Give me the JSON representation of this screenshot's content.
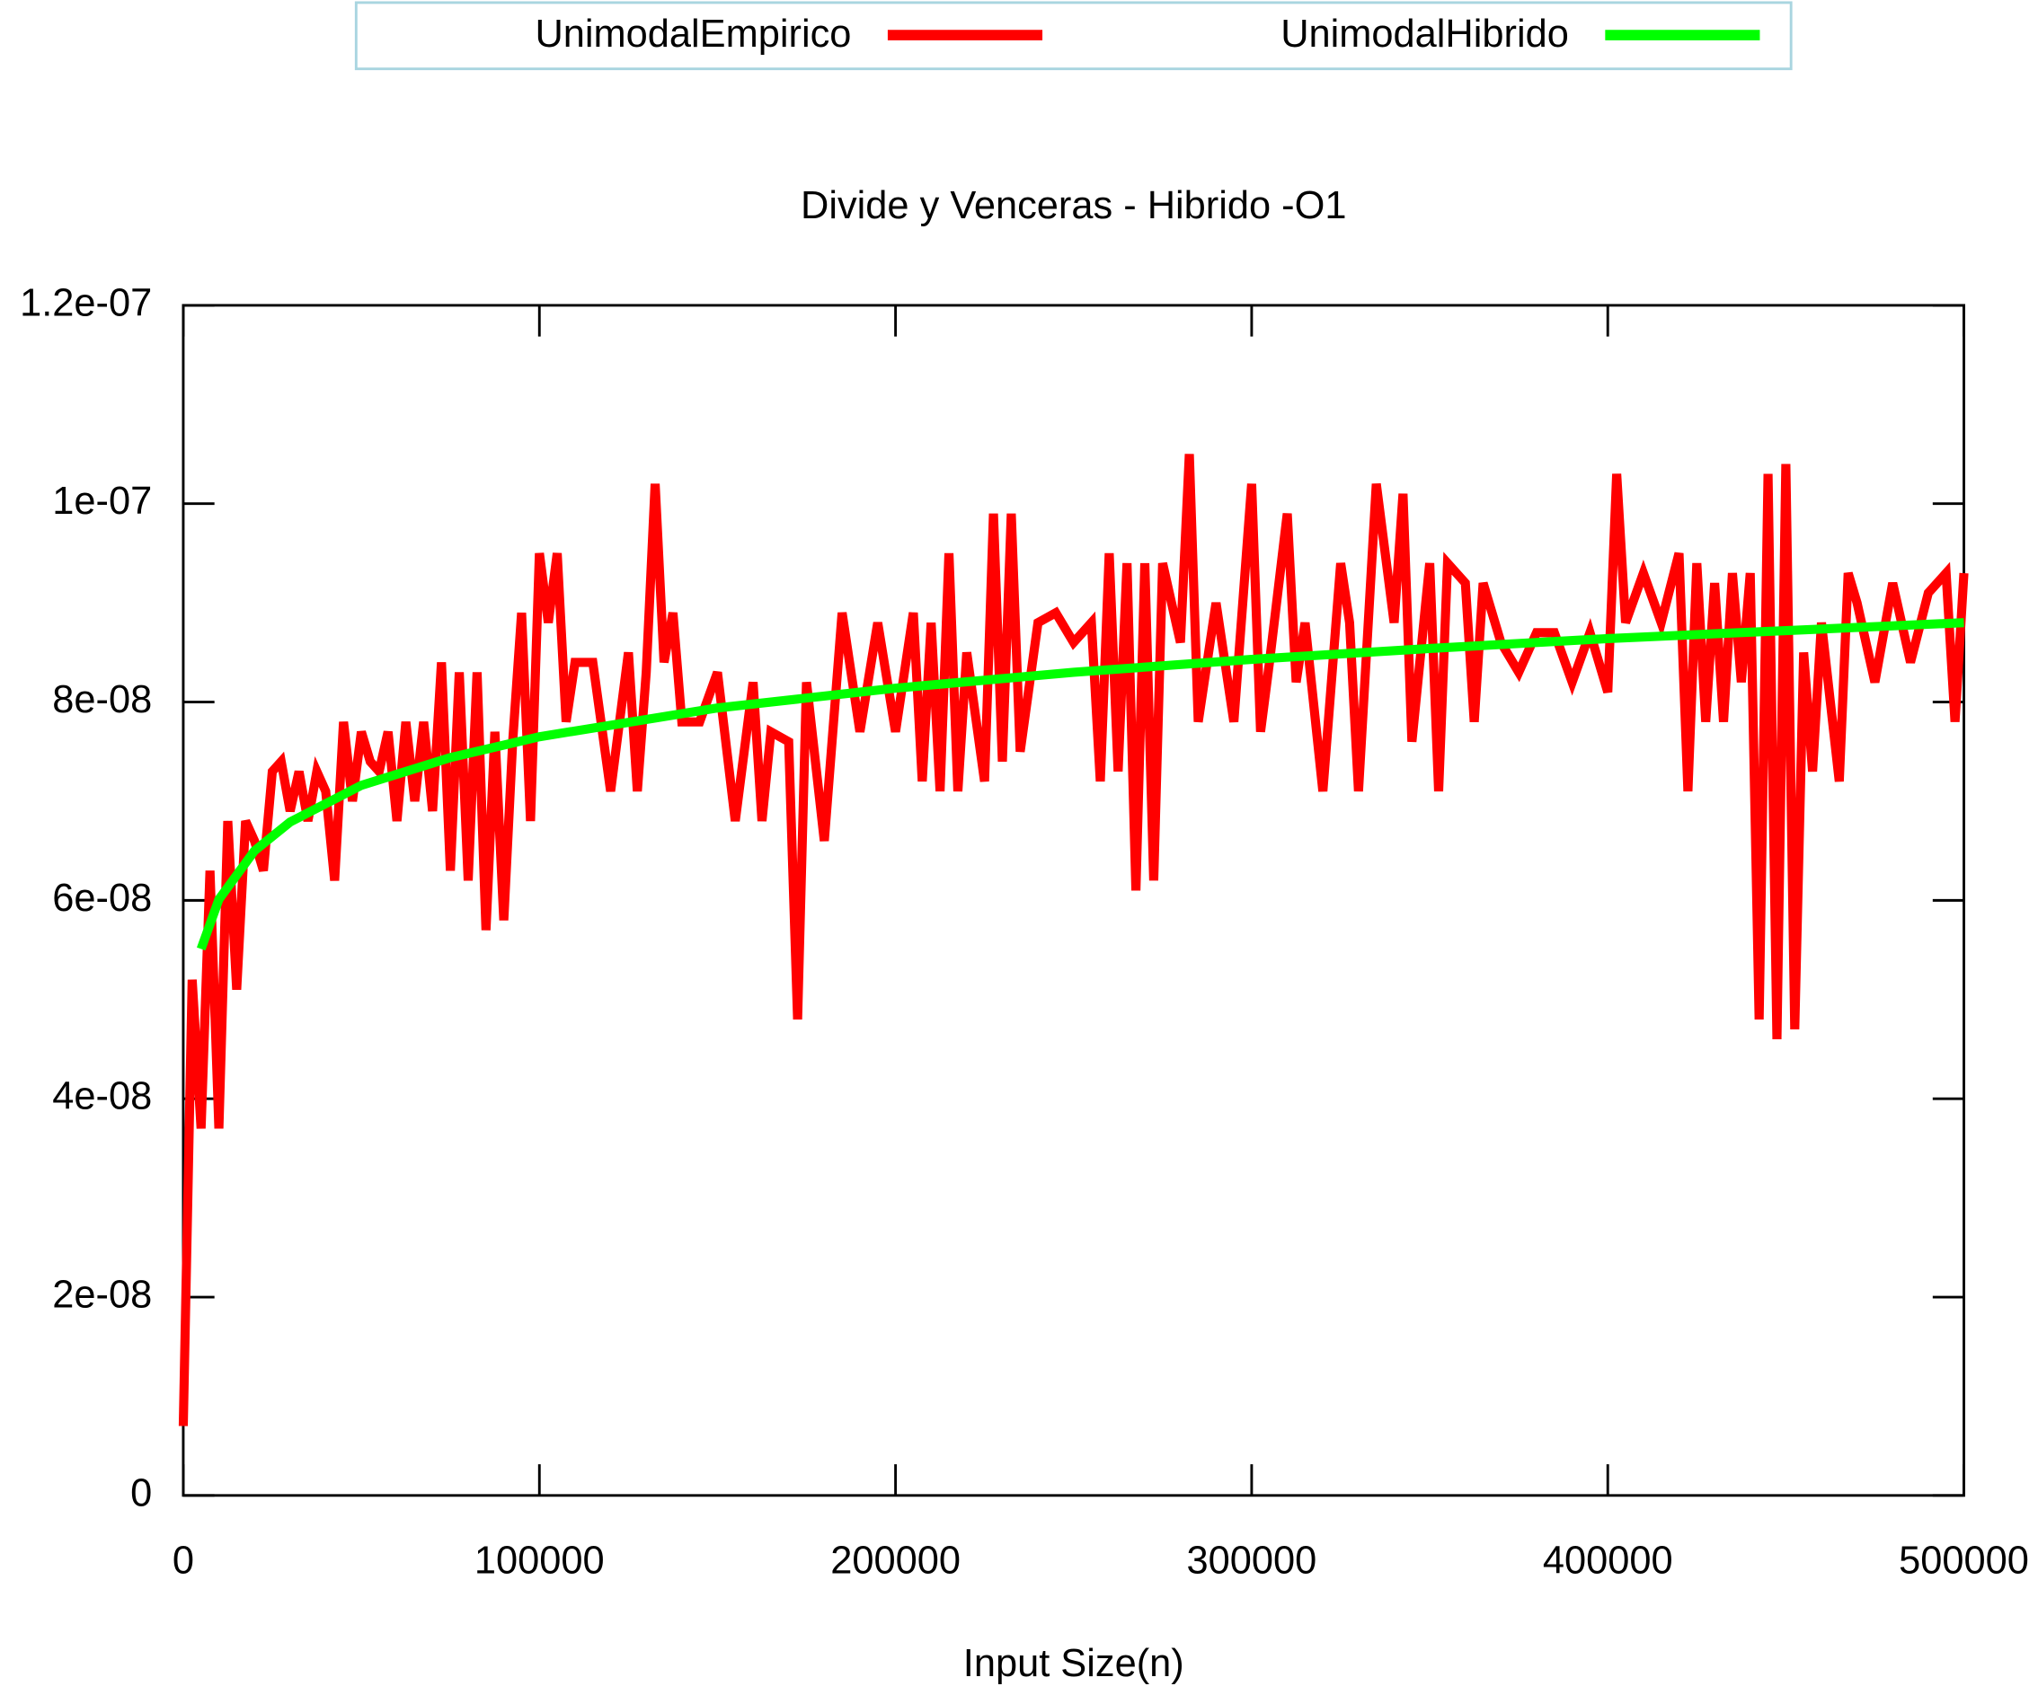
{
  "chart_data": {
    "type": "line",
    "title": "Divide y Venceras - Hibrido -O1",
    "xlabel": "Input Size(n)",
    "legend": "top",
    "grid": false,
    "xlim": [
      0,
      500000
    ],
    "xticks": [
      0,
      100000,
      200000,
      300000,
      400000,
      500000
    ],
    "ylim": [
      0,
      1.2e-07
    ],
    "yticks": [
      0,
      {
        "value": 2e-08,
        "label": "2e-08"
      },
      {
        "value": 4e-08,
        "label": "4e-08"
      },
      {
        "value": 6e-08,
        "label": "6e-08"
      },
      {
        "value": 8e-08,
        "label": "8e-08"
      },
      {
        "value": 1e-07,
        "label": "1e-07"
      },
      {
        "value": 1.2e-07,
        "label": "1.2e-07"
      }
    ],
    "series": [
      {
        "name": "UnimodalEmpirico",
        "color": "#ff0000",
        "x": [
          0,
          2500,
          5000,
          7500,
          10000,
          12500,
          15000,
          17500,
          20000,
          22500,
          25000,
          27500,
          30000,
          32500,
          35000,
          37500,
          40000,
          42500,
          45000,
          47500,
          50000,
          52500,
          55000,
          57500,
          60000,
          62500,
          65000,
          67500,
          70000,
          72500,
          75000,
          77500,
          80000,
          82500,
          85000,
          87500,
          90000,
          92500,
          95000,
          97500,
          100000,
          102500,
          105000,
          107500,
          110000,
          115000,
          120000,
          125000,
          127500,
          130000,
          132500,
          135000,
          137500,
          140000,
          145000,
          150000,
          155000,
          160000,
          162500,
          165000,
          170000,
          172500,
          175000,
          180000,
          185000,
          190000,
          195000,
          200000,
          205000,
          207500,
          210000,
          212500,
          215000,
          217500,
          220000,
          225000,
          227500,
          230000,
          232500,
          235000,
          240000,
          245000,
          250000,
          255000,
          257500,
          260000,
          262500,
          265000,
          267500,
          270000,
          272500,
          275000,
          280000,
          282500,
          285000,
          290000,
          295000,
          300000,
          302500,
          305000,
          310000,
          312500,
          315000,
          320000,
          325000,
          327500,
          330000,
          335000,
          340000,
          342500,
          345000,
          350000,
          352500,
          355000,
          360000,
          362500,
          365000,
          370000,
          375000,
          380000,
          385000,
          390000,
          395000,
          400000,
          402500,
          405000,
          410000,
          415000,
          420000,
          422500,
          425000,
          427500,
          430000,
          432500,
          435000,
          437500,
          440000,
          442500,
          445000,
          447500,
          450000,
          452500,
          455000,
          457500,
          460000,
          465000,
          467500,
          470000,
          475000,
          480000,
          485000,
          490000,
          495000,
          497500,
          500000
        ],
        "values": [
          7e-09,
          5.2e-08,
          3.7e-08,
          6.3e-08,
          3.7e-08,
          6.8e-08,
          5.1e-08,
          6.8e-08,
          6.6e-08,
          6.3e-08,
          7.3e-08,
          7.4e-08,
          6.9e-08,
          7.3e-08,
          6.8e-08,
          7.3e-08,
          7.1e-08,
          6.2e-08,
          7.8e-08,
          7e-08,
          7.7e-08,
          7.4e-08,
          7.3e-08,
          7.7e-08,
          6.8e-08,
          7.8e-08,
          7e-08,
          7.8e-08,
          6.9e-08,
          8.4e-08,
          6.3e-08,
          8.3e-08,
          6.2e-08,
          8.3e-08,
          5.7e-08,
          7.7e-08,
          5.8e-08,
          7.6e-08,
          8.9e-08,
          6.8e-08,
          9.5e-08,
          8.8e-08,
          9.5e-08,
          7.8e-08,
          8.4e-08,
          8.4e-08,
          7.1e-08,
          8.5e-08,
          7.1e-08,
          8.3e-08,
          1.02e-07,
          8.4e-08,
          8.9e-08,
          7.8e-08,
          7.8e-08,
          8.3e-08,
          6.8e-08,
          8.2e-08,
          6.8e-08,
          7.7e-08,
          7.6e-08,
          4.8e-08,
          8.2e-08,
          6.6e-08,
          8.9e-08,
          7.7e-08,
          8.8e-08,
          7.7e-08,
          8.9e-08,
          7.2e-08,
          8.8e-08,
          7.1e-08,
          9.5e-08,
          7.1e-08,
          8.5e-08,
          7.2e-08,
          9.9e-08,
          7.4e-08,
          9.9e-08,
          7.5e-08,
          8.8e-08,
          8.9e-08,
          8.6e-08,
          8.8e-08,
          7.2e-08,
          9.5e-08,
          7.3e-08,
          9.4e-08,
          6.1e-08,
          9.4e-08,
          6.2e-08,
          9.4e-08,
          8.6e-08,
          1.05e-07,
          7.8e-08,
          9e-08,
          7.8e-08,
          1.02e-07,
          7.7e-08,
          8.4e-08,
          9.9e-08,
          8.2e-08,
          8.8e-08,
          7.1e-08,
          9.4e-08,
          8.8e-08,
          7.1e-08,
          1.02e-07,
          8.8e-08,
          1.01e-07,
          7.6e-08,
          9.4e-08,
          7.1e-08,
          9.4e-08,
          9.2e-08,
          7.8e-08,
          9.2e-08,
          8.6e-08,
          8.3e-08,
          8.7e-08,
          8.7e-08,
          8.2e-08,
          8.7e-08,
          8.1e-08,
          1.03e-07,
          8.8e-08,
          9.3e-08,
          8.8e-08,
          9.5e-08,
          7.1e-08,
          9.4e-08,
          7.8e-08,
          9.2e-08,
          7.8e-08,
          9.3e-08,
          8.2e-08,
          9.3e-08,
          4.8e-08,
          1.03e-07,
          4.6e-08,
          1.04e-07,
          4.7e-08,
          8.5e-08,
          7.3e-08,
          8.8e-08,
          7.2e-08,
          9.3e-08,
          9e-08,
          8.2e-08,
          9.2e-08,
          8.4e-08,
          9.1e-08,
          9.3e-08,
          7.8e-08,
          9.3e-08
        ]
      },
      {
        "name": "UnimodalHibrido",
        "color": "#00ff00",
        "x": [
          5000,
          10000,
          20000,
          30000,
          50000,
          75000,
          100000,
          150000,
          200000,
          250000,
          300000,
          350000,
          400000,
          450000,
          500000
        ],
        "values": [
          5.51e-08,
          6.01e-08,
          6.5e-08,
          6.79e-08,
          7.16e-08,
          7.44e-08,
          7.65e-08,
          7.94e-08,
          8.14e-08,
          8.3e-08,
          8.43e-08,
          8.54e-08,
          8.64e-08,
          8.72e-08,
          8.8e-08
        ]
      }
    ]
  }
}
